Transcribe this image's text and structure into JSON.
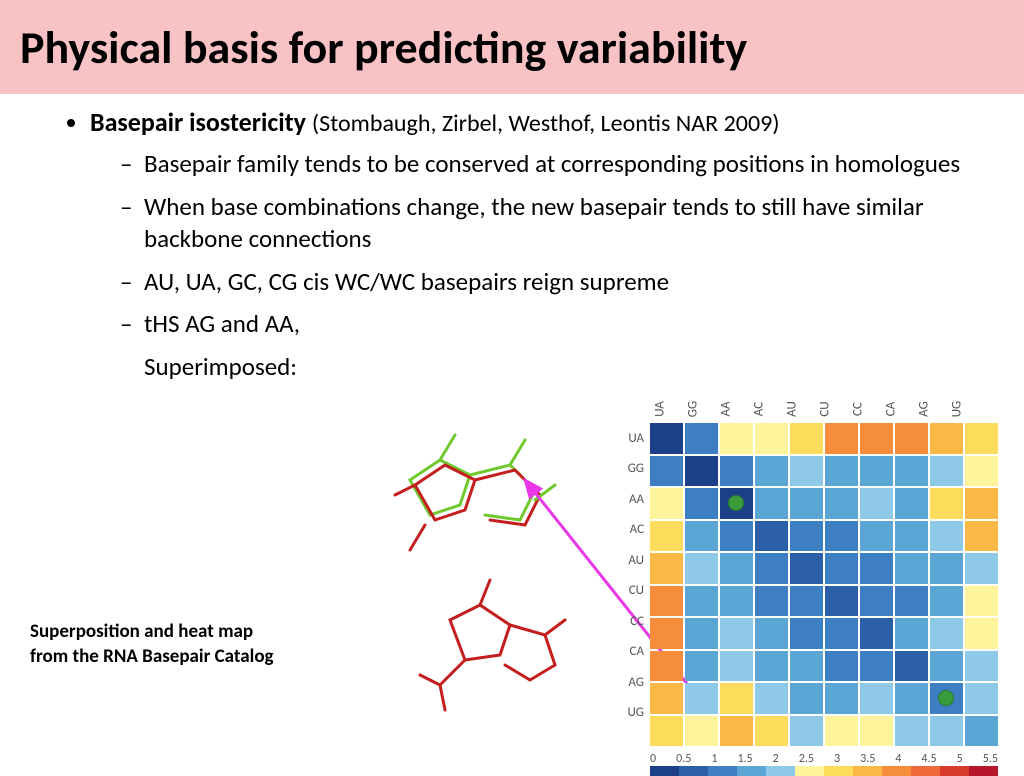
{
  "title": "Physical basis for predicting variability",
  "title_bg": "#f9c2c4",
  "main_bullet": {
    "bold": "Basepair isostericity",
    "citation": "(Stombaugh, Zirbel, Westhof, Leontis NAR 2009)"
  },
  "sub_bullets": [
    "Basepair family tends to be conserved at corresponding positions in homologues",
    "When base combinations change, the new basepair tends to still have similar backbone connections",
    "AU, UA, GC, CG cis WC/WC basepairs reign supreme",
    "tHS AG and AA,"
  ],
  "superimposed": "Superimposed:",
  "caption_l1": "Superposition and heat map",
  "caption_l2": "from the RNA Basepair Catalog",
  "heatmap": {
    "labels": [
      "UA",
      "GG",
      "AA",
      "AC",
      "AU",
      "CU",
      "CC",
      "CA",
      "AG",
      "UG"
    ],
    "colors": {
      "0": "#1d3f87",
      "1": "#2b5fa8",
      "2": "#3d7fc2",
      "3": "#5ca6d6",
      "4": "#8fc9e8",
      "5": "#fdf39a",
      "6": "#fddc5c",
      "7": "#fcb845",
      "8": "#f68d3c",
      "9": "#ee6a3a",
      "10": "#d93b2b",
      "11": "#b5162a"
    },
    "grid": [
      [
        0,
        2,
        5,
        5,
        6,
        8,
        8,
        8,
        7,
        6
      ],
      [
        2,
        0,
        2,
        3,
        4,
        3,
        3,
        3,
        4,
        5
      ],
      [
        5,
        2,
        0,
        3,
        3,
        3,
        4,
        3,
        6,
        7
      ],
      [
        6,
        3,
        2,
        1,
        2,
        2,
        3,
        3,
        4,
        7
      ],
      [
        7,
        4,
        3,
        2,
        1,
        2,
        2,
        3,
        3,
        4
      ],
      [
        8,
        3,
        3,
        2,
        2,
        1,
        2,
        2,
        3,
        5
      ],
      [
        8,
        3,
        4,
        3,
        2,
        2,
        1,
        3,
        4,
        5
      ],
      [
        8,
        3,
        4,
        3,
        3,
        2,
        2,
        1,
        3,
        4
      ],
      [
        7,
        4,
        6,
        4,
        3,
        3,
        4,
        3,
        2,
        4
      ],
      [
        6,
        5,
        7,
        6,
        4,
        5,
        5,
        4,
        4,
        3
      ]
    ],
    "circles": [
      {
        "row": 2,
        "col": 2
      },
      {
        "row": 8,
        "col": 8
      }
    ],
    "legend_ticks": [
      "0",
      "0.5",
      "1",
      "1.5",
      "2",
      "2.5",
      "3",
      "3.5",
      "4",
      "4.5",
      "5",
      "5.5"
    ]
  },
  "arrow_color": "#e838e8"
}
